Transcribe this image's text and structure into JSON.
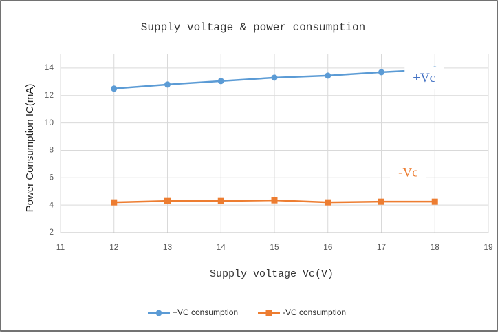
{
  "chart_data": {
    "type": "line",
    "title": "Supply voltage &  power consumption",
    "x_label": "Supply voltage Vc(V)",
    "y_label": "Power Consumption IC(mA)",
    "x": [
      12,
      13,
      14,
      15,
      16,
      17,
      18
    ],
    "series": [
      {
        "name": "+VC consumption",
        "color": "#5b9bd5",
        "marker": "circle",
        "values": [
          12.5,
          12.8,
          13.05,
          13.3,
          13.45,
          13.7,
          13.9
        ]
      },
      {
        "name": "-VC consumption",
        "color": "#ed7d31",
        "marker": "square",
        "values": [
          4.2,
          4.3,
          4.3,
          4.35,
          4.2,
          4.25,
          4.25
        ]
      }
    ],
    "annotations": [
      {
        "text": "+Vc",
        "x": 17.8,
        "y": 13.2,
        "color": "#4472c4"
      },
      {
        "text": "-Vc",
        "x": 17.5,
        "y": 6.3,
        "color": "#ed7d31"
      }
    ],
    "xlim": [
      11,
      19
    ],
    "xticks": [
      11,
      12,
      13,
      14,
      15,
      16,
      17,
      18,
      19
    ],
    "ylim": [
      2,
      15
    ],
    "yticks": [
      2,
      4,
      6,
      8,
      10,
      12,
      14
    ],
    "grid": true,
    "legend": "bottom"
  }
}
